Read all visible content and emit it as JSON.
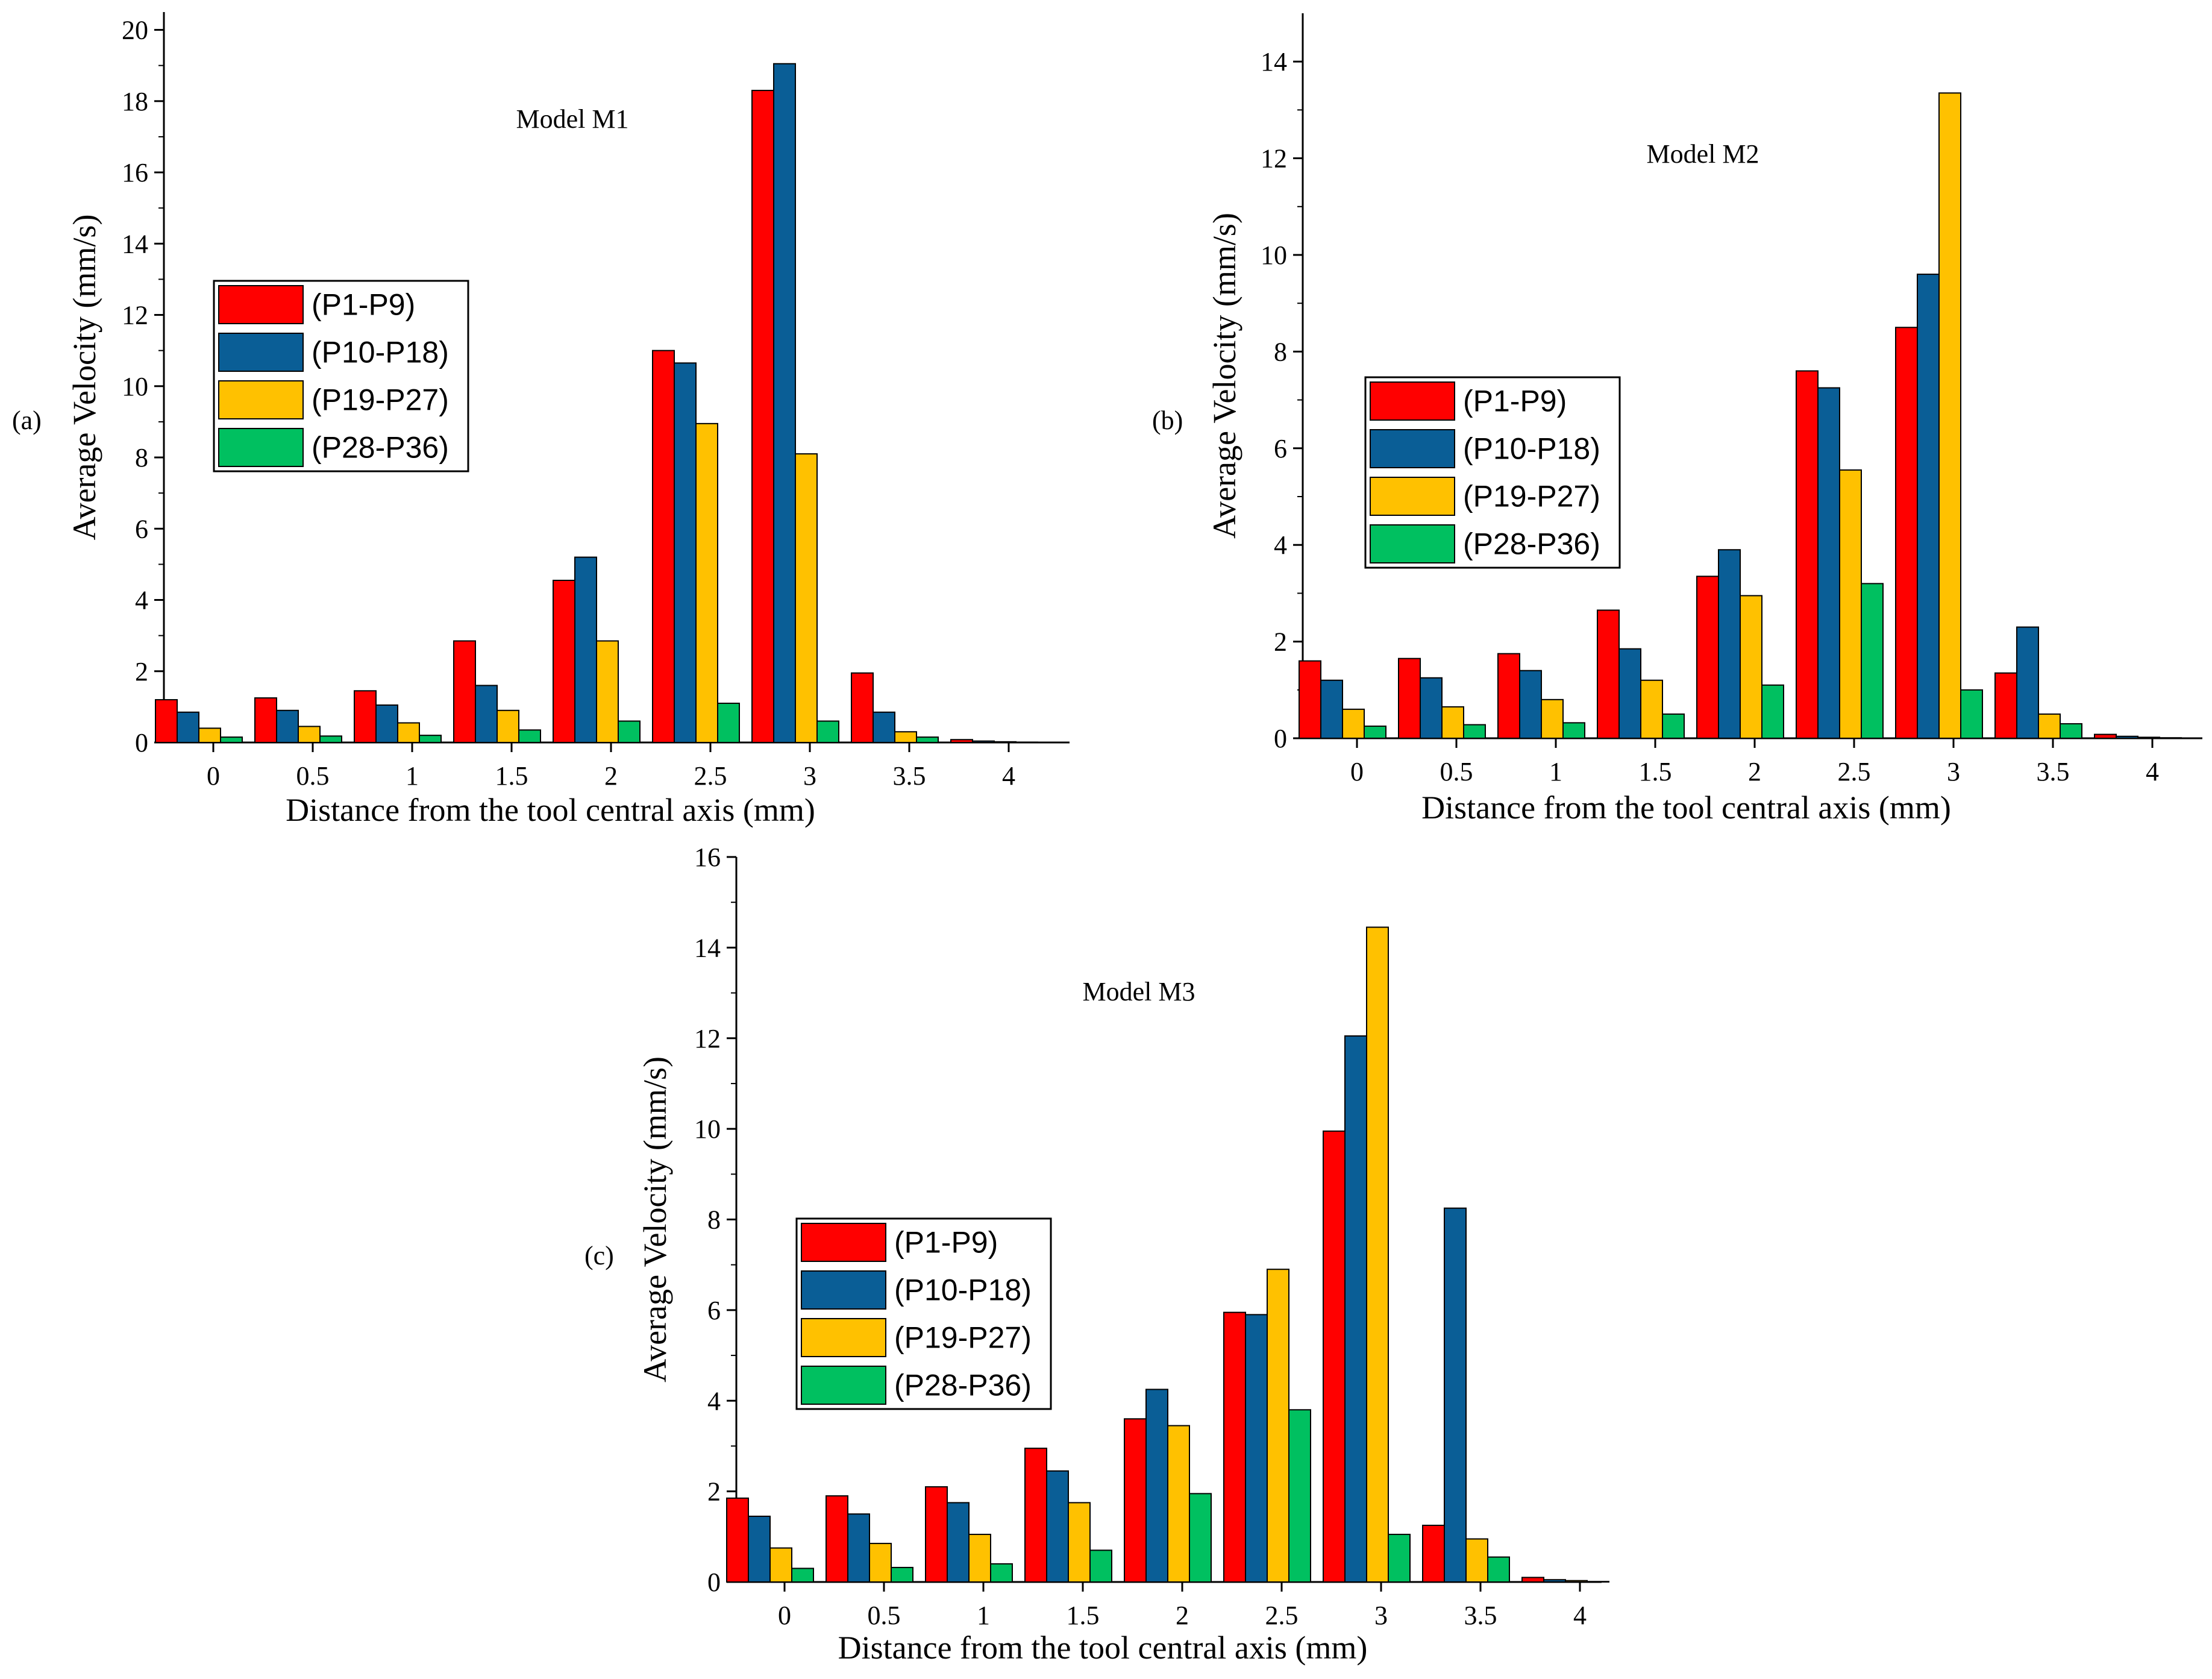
{
  "colors": {
    "series": [
      "#ff0000",
      "#0a5e96",
      "#ffc100",
      "#00c060"
    ],
    "axis": "#000000"
  },
  "chart_data": [
    {
      "type": "bar",
      "panel_label": "(a)",
      "title": "Model M1",
      "xlabel": "Distance from the tool central axis (mm)",
      "ylabel": "Average Velocity (mm/s)",
      "categories": [
        "0",
        "0.5",
        "1",
        "1.5",
        "2",
        "2.5",
        "3",
        "3.5",
        "4"
      ],
      "yticks": [
        0,
        2,
        4,
        6,
        8,
        10,
        12,
        14,
        16,
        18,
        20
      ],
      "ylim": [
        0,
        20.5
      ],
      "legend_position": "left",
      "series": [
        {
          "name": "(P1-P9)",
          "values": [
            1.2,
            1.25,
            1.45,
            2.85,
            4.55,
            11.0,
            18.3,
            1.95,
            0.08
          ]
        },
        {
          "name": "(P10-P18)",
          "values": [
            0.85,
            0.9,
            1.05,
            1.6,
            5.2,
            10.65,
            19.05,
            0.85,
            0.04
          ]
        },
        {
          "name": "(P19-P27)",
          "values": [
            0.4,
            0.45,
            0.55,
            0.9,
            2.85,
            8.95,
            8.1,
            0.3,
            0.02
          ]
        },
        {
          "name": "(P28-P36)",
          "values": [
            0.15,
            0.18,
            0.2,
            0.35,
            0.6,
            1.1,
            0.6,
            0.15,
            0.01
          ]
        }
      ]
    },
    {
      "type": "bar",
      "panel_label": "(b)",
      "title": "Model M2",
      "xlabel": "Distance from the tool central axis (mm)",
      "ylabel": "Average Velocity (mm/s)",
      "categories": [
        "0",
        "0.5",
        "1",
        "1.5",
        "2",
        "2.5",
        "3",
        "3.5",
        "4"
      ],
      "yticks": [
        0,
        2,
        4,
        6,
        8,
        10,
        12,
        14
      ],
      "ylim": [
        0,
        15
      ],
      "legend_position": "left",
      "series": [
        {
          "name": "(P1-P9)",
          "values": [
            1.6,
            1.65,
            1.75,
            2.65,
            3.35,
            7.6,
            8.5,
            1.35,
            0.08
          ]
        },
        {
          "name": "(P10-P18)",
          "values": [
            1.2,
            1.25,
            1.4,
            1.85,
            3.9,
            7.25,
            9.6,
            2.3,
            0.04
          ]
        },
        {
          "name": "(P19-P27)",
          "values": [
            0.6,
            0.65,
            0.8,
            1.2,
            2.95,
            5.55,
            13.35,
            0.5,
            0.02
          ]
        },
        {
          "name": "(P28-P36)",
          "values": [
            0.25,
            0.28,
            0.32,
            0.5,
            1.1,
            3.2,
            1.0,
            0.3,
            0.01
          ]
        }
      ]
    },
    {
      "type": "bar",
      "panel_label": "(c)",
      "title": "Model M3",
      "xlabel": "Distance from the tool central axis (mm)",
      "ylabel": "Average Velocity (mm/s)",
      "categories": [
        "0",
        "0.5",
        "1",
        "1.5",
        "2",
        "2.5",
        "3",
        "3.5",
        "4"
      ],
      "yticks": [
        0,
        2,
        4,
        6,
        8,
        10,
        12,
        14,
        16
      ],
      "ylim": [
        0,
        16
      ],
      "legend_position": "left",
      "series": [
        {
          "name": "(P1-P9)",
          "values": [
            1.85,
            1.9,
            2.1,
            2.95,
            3.6,
            5.95,
            9.95,
            1.25,
            0.1
          ]
        },
        {
          "name": "(P10-P18)",
          "values": [
            1.45,
            1.5,
            1.75,
            2.45,
            4.25,
            5.9,
            12.05,
            8.25,
            0.05
          ]
        },
        {
          "name": "(P19-P27)",
          "values": [
            0.75,
            0.85,
            1.05,
            1.75,
            3.45,
            6.9,
            14.45,
            0.95,
            0.03
          ]
        },
        {
          "name": "(P28-P36)",
          "values": [
            0.3,
            0.32,
            0.4,
            0.7,
            1.95,
            3.8,
            1.05,
            0.55,
            0.01
          ]
        }
      ]
    }
  ]
}
